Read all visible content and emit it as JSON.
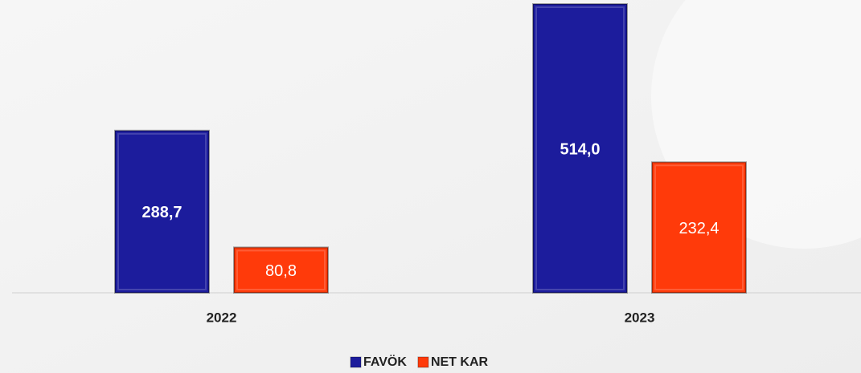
{
  "chart_data": {
    "type": "bar",
    "categories": [
      "2022",
      "2023"
    ],
    "series": [
      {
        "name": "FAVÖK",
        "color": "#1c1c9c",
        "values": [
          288.7,
          514.0
        ],
        "value_labels": [
          "288,7",
          "514,0"
        ]
      },
      {
        "name": "NET KAR",
        "color": "#ff3a0a",
        "values": [
          80.8,
          232.4
        ],
        "value_labels": [
          "80,8",
          "232,4"
        ]
      }
    ],
    "legend": "bottom"
  }
}
